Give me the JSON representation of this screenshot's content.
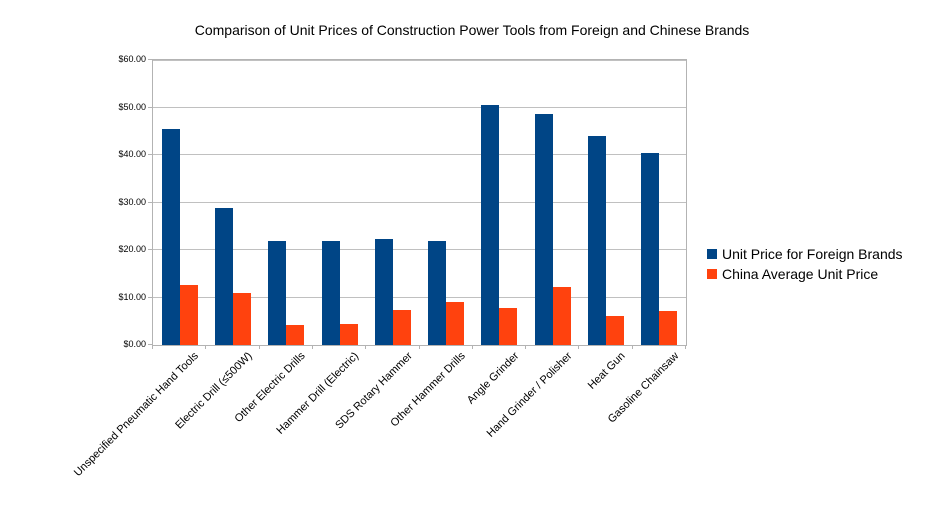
{
  "chart_data": {
    "type": "bar",
    "title": "Comparison of Unit Prices of Construction Power Tools from Foreign and Chinese Brands",
    "categories": [
      "Unspecified Pneumatic Hand Tools",
      "Electric Drill (≤500W)",
      "Other Electric Drills",
      "Hammer Drill (Electric)",
      "SDS Rotary Hammer",
      "Other Hammer Drills",
      "Angle Grinder",
      "Hand Grinder / Polisher",
      "Heat Gun",
      "Gasoline Chainsaw"
    ],
    "series": [
      {
        "name": "Unit Price for Foreign Brands",
        "color": "#004586",
        "values": [
          45.4,
          28.9,
          21.9,
          22.0,
          22.3,
          21.9,
          50.6,
          48.6,
          44.0,
          40.4
        ]
      },
      {
        "name": "China Average Unit Price",
        "color": "#FF420E",
        "values": [
          12.7,
          11.0,
          4.2,
          4.5,
          7.3,
          9.1,
          7.8,
          12.2,
          6.2,
          7.2
        ]
      }
    ],
    "xlabel": "",
    "ylabel": "",
    "ylim": [
      0,
      60
    ],
    "y_tick_step": 10,
    "y_tick_labels": [
      "$0.00",
      "$10.00",
      "$20.00",
      "$30.00",
      "$40.00",
      "$50.00",
      "$60.00"
    ],
    "grid": true,
    "legend_position": "right",
    "background_color": "#ffffff",
    "gridline_color": "#c0c0c0",
    "axis_color": "#b3b3b3"
  }
}
